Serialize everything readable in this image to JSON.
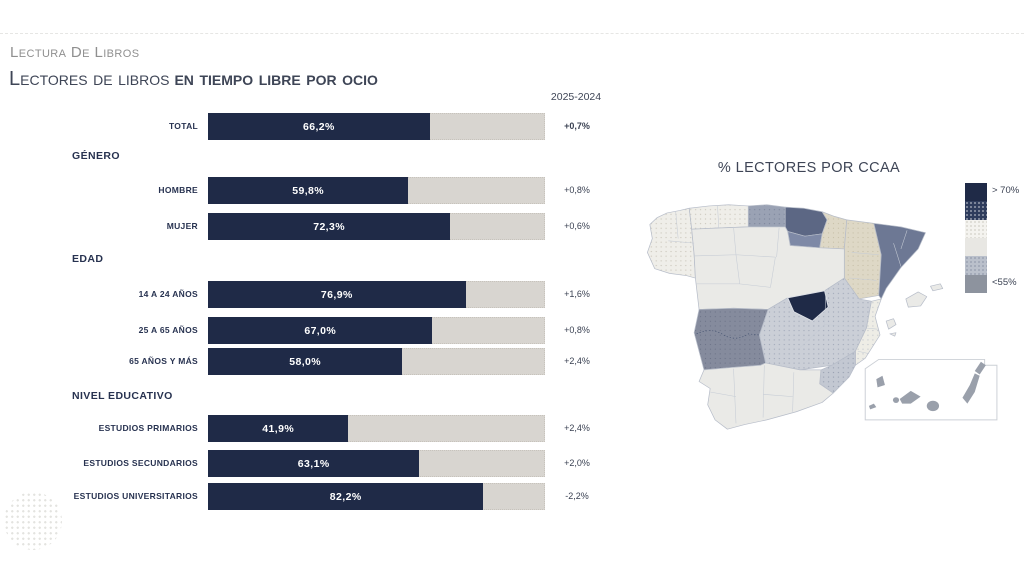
{
  "theme": {
    "accent-navy": "#1f2a47",
    "bar-track": "#d8d5d0",
    "title-color": "#3e4556",
    "eyebrow-color": "#8f8f8f",
    "label-color": "#273250",
    "change-color": "#3a4152"
  },
  "page": {
    "eyebrow": "Lectura De Libros",
    "title_regular": "Lectores de libros",
    "title_bold": "en tiempo libre por ocio",
    "comparison_label": "2025-2024"
  },
  "chart_data": {
    "type": "bar",
    "orientation": "horizontal",
    "title": "Lectores de libros en tiempo libre por ocio",
    "unit": "%",
    "xlim": [
      0,
      100
    ],
    "comparison_period": "2025-2024",
    "groups": [
      {
        "header": "",
        "rows": [
          {
            "label": "TOTAL",
            "value": 66.2,
            "value_label": "66,2%",
            "change": "+0,7%"
          }
        ]
      },
      {
        "header": "GÉNERO",
        "rows": [
          {
            "label": "HOMBRE",
            "value": 59.8,
            "value_label": "59,8%",
            "change": "+0,8%"
          },
          {
            "label": "MUJER",
            "value": 72.3,
            "value_label": "72,3%",
            "change": "+0,6%"
          }
        ]
      },
      {
        "header": "EDAD",
        "rows": [
          {
            "label": "14 A 24 AÑOS",
            "value": 76.9,
            "value_label": "76,9%",
            "change": "+1,6%"
          },
          {
            "label": "25 A 65 AÑOS",
            "value": 67.0,
            "value_label": "67,0%",
            "change": "+0,8%"
          },
          {
            "label": "65 AÑOS Y MÁS",
            "value": 58.0,
            "value_label": "58,0%",
            "change": "+2,4%"
          }
        ]
      },
      {
        "header": "NIVEL EDUCATIVO",
        "rows": [
          {
            "label": "ESTUDIOS PRIMARIOS",
            "value": 41.9,
            "value_label": "41,9%",
            "change": "+2,4%"
          },
          {
            "label": "ESTUDIOS SECUNDARIOS",
            "value": 63.1,
            "value_label": "63,1%",
            "change": "+2,0%"
          },
          {
            "label": "ESTUDIOS UNIVERSITARIOS",
            "value": 82.2,
            "value_label": "82,2%",
            "change": "-2,2%"
          }
        ]
      }
    ]
  },
  "map": {
    "title": "% LECTORES POR CCAA",
    "legend": {
      "top_label": "> 70%",
      "bottom_label": "<55%"
    },
    "palette": {
      "navy": "#1f2a47",
      "slate": "#6d7894",
      "slate_dark": "#5c6784",
      "slate_medium": "#7e89a6",
      "beige": "#ded8c6",
      "light_gray": "#eaeae7",
      "blue_gray_dotted": "#cbcfd7",
      "gray_blue_dotted": "#9aa2b4",
      "dark_gray_dotted": "#858b9d",
      "light_dotted": "#efeee9",
      "island_gray": "#9aa0ab"
    },
    "regions": [
      {
        "name": "Galicia",
        "tier": "light-dotted"
      },
      {
        "name": "Asturias",
        "tier": "light-dotted"
      },
      {
        "name": "Cantabria",
        "tier": "gray-blue-dotted"
      },
      {
        "name": "País Vasco",
        "tier": "slate-dark"
      },
      {
        "name": "La Rioja",
        "tier": "slate-medium"
      },
      {
        "name": "Navarra",
        "tier": "beige"
      },
      {
        "name": "Aragón",
        "tier": "beige"
      },
      {
        "name": "Cataluña",
        "tier": "slate"
      },
      {
        "name": "Castilla y León",
        "tier": "light"
      },
      {
        "name": "Comunidad de Madrid",
        "tier": "navy->70%"
      },
      {
        "name": "Castilla-La Mancha",
        "tier": "blue-gray-dotted"
      },
      {
        "name": "Comunitat Valenciana",
        "tier": "light-dotted"
      },
      {
        "name": "Región de Murcia",
        "tier": "gray-blue-dotted"
      },
      {
        "name": "Extremadura",
        "tier": "dark-gray-dotted-<55%"
      },
      {
        "name": "Andalucía",
        "tier": "light"
      },
      {
        "name": "Illes Balears",
        "tier": "light"
      },
      {
        "name": "Canarias",
        "tier": "island-gray"
      }
    ]
  }
}
